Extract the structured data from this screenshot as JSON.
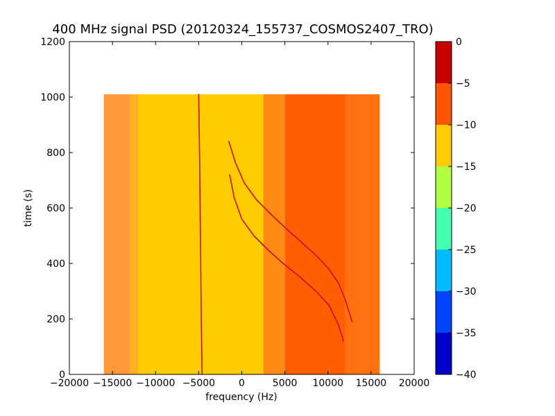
{
  "chart_data": {
    "type": "heatmap",
    "title": "400 MHz signal PSD (20120324_155737_COSMOS2407_TRO)",
    "xlabel": "frequency (Hz)",
    "ylabel": "time (s)",
    "xlim": [
      -20000,
      20000
    ],
    "ylim": [
      0,
      1200
    ],
    "xticks": [
      -20000,
      -15000,
      -10000,
      -5000,
      0,
      5000,
      10000,
      15000,
      20000
    ],
    "xtick_labels": [
      "−20000",
      "−15000",
      "−10000",
      "−5000",
      "0",
      "5000",
      "10000",
      "15000",
      "20000"
    ],
    "yticks": [
      0,
      200,
      400,
      600,
      800,
      1000,
      1200
    ],
    "ytick_labels": [
      "0",
      "200",
      "400",
      "600",
      "800",
      "1000",
      "1200"
    ],
    "data_extent": {
      "x": [
        -16000,
        16000
      ],
      "y": [
        0,
        1010
      ]
    },
    "grid": false,
    "colorbar": {
      "range": [
        -40,
        0
      ],
      "levels": [
        -40,
        -35,
        -30,
        -25,
        -20,
        -15,
        -10,
        -5,
        0
      ],
      "tick_labels": [
        "−40",
        "−35",
        "−30",
        "−25",
        "−20",
        "−15",
        "−10",
        "−5",
        "0"
      ],
      "colors": [
        "#0000c8",
        "#0044ff",
        "#00bcff",
        "#44ffb0",
        "#b0ff44",
        "#ffcc00",
        "#ff5500",
        "#c80000"
      ]
    },
    "background_bands": [
      {
        "x_range": [
          -16000,
          -13000
        ],
        "level": -10,
        "color": "#ff9838"
      },
      {
        "x_range": [
          -13000,
          -12000
        ],
        "level": -12,
        "color": "#ffb020"
      },
      {
        "x_range": [
          -12000,
          2500
        ],
        "level": -12,
        "color": "#ffcc00"
      },
      {
        "x_range": [
          2500,
          5000
        ],
        "level": -8,
        "color": "#ff8a14"
      },
      {
        "x_range": [
          5000,
          12000
        ],
        "level": -7,
        "color": "#ff5e00"
      },
      {
        "x_range": [
          12000,
          16000
        ],
        "level": -8,
        "color": "#ff7010"
      }
    ],
    "traces": [
      {
        "kind": "doppler curve",
        "color": "#c8102e",
        "x": [
          -1500,
          -700,
          300,
          1700,
          3300,
          5000,
          6800,
          8600,
          10100,
          11200,
          12000,
          12800
        ],
        "y": [
          840,
          760,
          690,
          630,
          580,
          530,
          480,
          430,
          380,
          330,
          270,
          190
        ]
      },
      {
        "kind": "doppler curve",
        "color": "#c8102e",
        "x": [
          -1400,
          -900,
          0,
          1400,
          3000,
          4800,
          6800,
          8600,
          10100,
          11200,
          11800
        ],
        "y": [
          720,
          640,
          560,
          500,
          450,
          400,
          350,
          300,
          250,
          180,
          120
        ]
      },
      {
        "kind": "constant carrier",
        "color": "#c8102e",
        "x": [
          -5000,
          -4900,
          -4800,
          -4700,
          -4600
        ],
        "y": [
          1010,
          800,
          500,
          200,
          0
        ]
      }
    ]
  }
}
